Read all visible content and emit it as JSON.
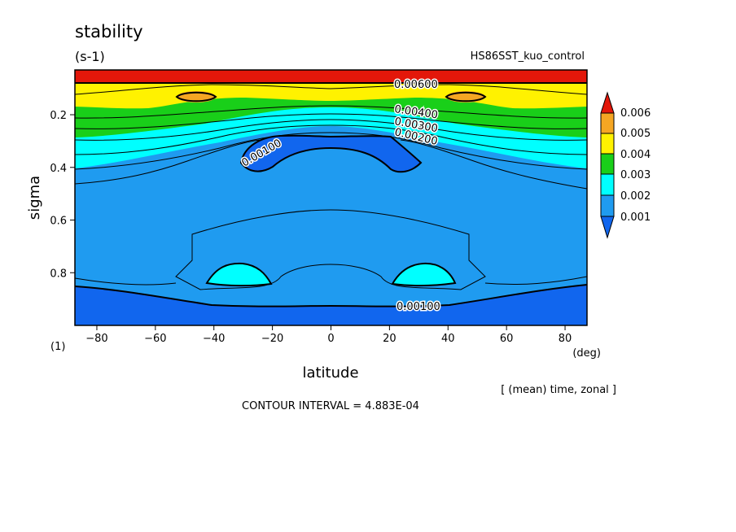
{
  "chart_data": {
    "type": "heatmap",
    "title": "stability",
    "units": "(s-1)",
    "experiment": "HS86SST_kuo_control",
    "xlabel": "latitude",
    "x_units": "(deg)",
    "ylabel": "sigma",
    "y_units": "(1)",
    "xlim": [
      -87.5,
      87.5
    ],
    "ylim": [
      1.0,
      0.03
    ],
    "y_reversed": true,
    "x_ticks": [
      -80,
      -60,
      -40,
      -20,
      0,
      20,
      40,
      60,
      80
    ],
    "x_tick_labels": [
      "−80",
      "−60",
      "−40",
      "−20",
      "0",
      "20",
      "40",
      "60",
      "80"
    ],
    "y_ticks": [
      0.2,
      0.4,
      0.6,
      0.8
    ],
    "y_tick_labels": [
      "0.2",
      "0.4",
      "0.6",
      "0.8"
    ],
    "averaging": "[ (mean) time, zonal ]",
    "contour_interval_text": "CONTOUR INTERVAL = 4.883E-04",
    "contour_labels": [
      "0.00600",
      "0.00400",
      "0.00300",
      "0.00200",
      "0.00100",
      "0.00100"
    ],
    "colorbar": {
      "labels": [
        "0.006",
        "0.005",
        "0.004",
        "0.003",
        "0.002",
        "0.001"
      ],
      "colors": [
        "#e3170a",
        "#f5a623",
        "#fff200",
        "#19cf19",
        "#00ffff",
        "#1f9bf0",
        "#1166ee"
      ]
    },
    "fill_colors": {
      "red": "#e3170a",
      "orange": "#f5a623",
      "yellow": "#fff200",
      "green": "#19cf19",
      "cyan": "#00ffff",
      "light_blue": "#1f9bf0",
      "blue": "#1166ee"
    },
    "bands": [
      {
        "name": "top red band",
        "sigma_from": 0.03,
        "sigma_to": 0.08,
        "value": "> 0.006"
      },
      {
        "name": "yellow band",
        "sigma_from": 0.08,
        "sigma_to": 0.15,
        "value": "0.004-0.005"
      },
      {
        "name": "orange maxima",
        "lat": [
          -47,
          47
        ],
        "sigma": 0.13,
        "value": "0.005-0.006"
      },
      {
        "name": "green band",
        "sigma_from": 0.15,
        "sigma_to": 0.27,
        "value": "0.003-0.004"
      },
      {
        "name": "cyan band",
        "sigma_from": 0.22,
        "sigma_to": 0.4,
        "value": "0.002-0.003"
      },
      {
        "name": "tropical minimum",
        "lat_from": -33,
        "lat_to": 33,
        "sigma_from": 0.28,
        "sigma_to": 0.42,
        "value": "< 0.001"
      },
      {
        "name": "subtropical cyan lobes",
        "lat": [
          -32,
          32
        ],
        "sigma": 0.8,
        "value": "0.002-0.003"
      },
      {
        "name": "lower blue band",
        "sigma_from": 0.85,
        "sigma_to": 1.0,
        "value": "< 0.001"
      }
    ]
  }
}
